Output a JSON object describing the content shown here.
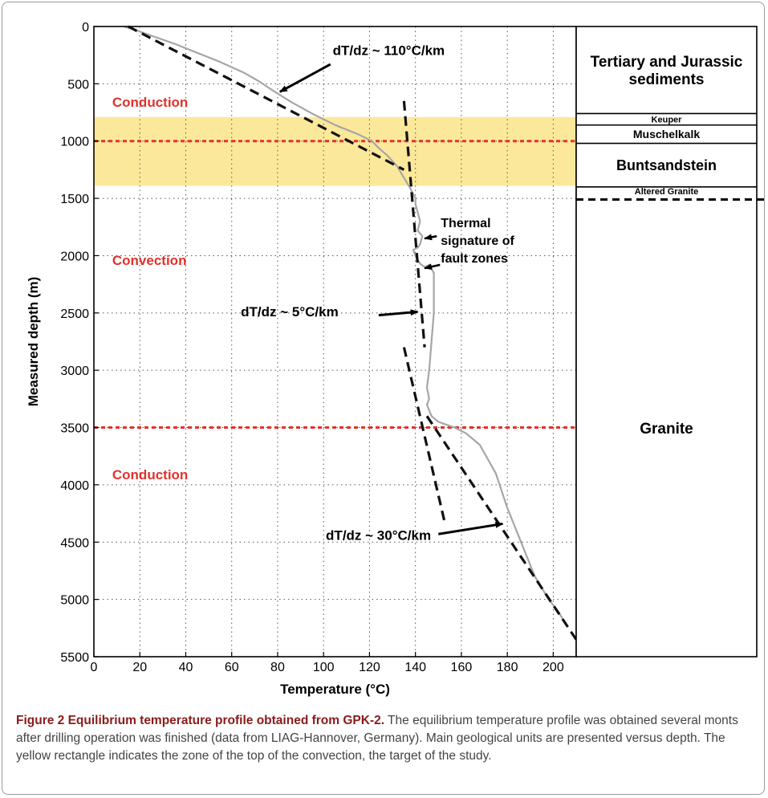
{
  "chart_data": {
    "type": "line",
    "title": "",
    "xlabel": "Temperature (°C)",
    "ylabel": "Measured depth (m)",
    "xlim": [
      0,
      210
    ],
    "ylim": [
      5500,
      0
    ],
    "y_inverted": true,
    "xticks": [
      0,
      20,
      40,
      60,
      80,
      100,
      120,
      140,
      160,
      180,
      200
    ],
    "yticks": [
      0,
      500,
      1000,
      1500,
      2000,
      2500,
      3000,
      3500,
      4000,
      4500,
      5000,
      5500
    ],
    "grid": true,
    "series": [
      {
        "kind": "measured",
        "color": "#a6a6a6",
        "x": [
          13,
          18,
          25,
          35,
          45,
          55,
          65,
          72,
          78,
          86,
          95,
          105,
          115,
          121,
          124,
          128,
          132,
          135,
          138,
          140,
          140,
          141,
          142,
          141,
          143,
          142,
          141,
          139,
          140,
          142,
          144,
          146,
          148,
          148,
          146,
          145,
          146,
          145,
          147,
          150,
          157,
          162,
          168,
          175,
          180,
          186,
          192,
          198,
          202,
          205
        ],
        "y": [
          0,
          30,
          80,
          150,
          230,
          310,
          400,
          480,
          560,
          660,
          760,
          860,
          940,
          1000,
          1060,
          1130,
          1220,
          1320,
          1420,
          1500,
          1550,
          1620,
          1700,
          1780,
          1830,
          1900,
          1930,
          1950,
          2000,
          2070,
          2100,
          2080,
          2150,
          2500,
          3000,
          3150,
          3250,
          3300,
          3400,
          3450,
          3500,
          3550,
          3650,
          3900,
          4200,
          4500,
          4800,
          5000,
          5100,
          5200
        ]
      },
      {
        "kind": "fit",
        "color": "#111111",
        "x": [
          15,
          135
        ],
        "y": [
          0,
          1250
        ]
      },
      {
        "kind": "fit",
        "color": "#111111",
        "x": [
          135,
          144
        ],
        "y": [
          650,
          2800
        ]
      },
      {
        "kind": "fit",
        "color": "#111111",
        "x": [
          135,
          153
        ],
        "y": [
          2800,
          4350
        ]
      },
      {
        "kind": "fit",
        "color": "#111111",
        "x": [
          145,
          210
        ],
        "y": [
          3400,
          5350
        ]
      }
    ],
    "reference_lines": [
      {
        "axis": "y",
        "value": 1000,
        "color": "#e8302a"
      },
      {
        "axis": "y",
        "value": 3500,
        "color": "#e8302a"
      }
    ],
    "highlight_band": {
      "y_from": 790,
      "y_to": 1390,
      "color": "#fbe89a"
    },
    "zone_labels": [
      {
        "text": "Conduction",
        "x": 8,
        "y": 700
      },
      {
        "text": "Convection",
        "x": 8,
        "y": 2080
      },
      {
        "text": "Conduction",
        "x": 8,
        "y": 3950
      }
    ],
    "annotations": [
      {
        "text": "dT/dz ~ 110°C/km",
        "x": 104,
        "y": 250,
        "arrow_to": [
          81,
          570
        ]
      },
      {
        "text": "dT/dz ~ 5°C/km",
        "x": 64,
        "y": 2530,
        "arrow_to": [
          141,
          2490
        ]
      },
      {
        "text": "dT/dz ~ 30°C/km",
        "x": 101,
        "y": 4480,
        "arrow_to": [
          178,
          4340
        ]
      }
    ],
    "fault_zone_note": {
      "lines": [
        "Thermal",
        "signature of",
        "fault zones"
      ],
      "x": 150,
      "y": 1750,
      "arrow_targets": [
        [
          144,
          1850
        ],
        [
          144,
          2110
        ]
      ]
    },
    "geology_column": [
      {
        "name": "Tertiary and Jurassic sediments",
        "lines": [
          "Tertiary and Jurassic",
          "sediments"
        ],
        "top": 0,
        "bottom": 760
      },
      {
        "name": "Keuper",
        "lines": [
          "Keuper"
        ],
        "top": 760,
        "bottom": 860
      },
      {
        "name": "Muschelkalk",
        "lines": [
          "Muschelkalk"
        ],
        "top": 860,
        "bottom": 1020
      },
      {
        "name": "Buntsandstein",
        "lines": [
          "Buntsandstein"
        ],
        "top": 1020,
        "bottom": 1400
      },
      {
        "name": "Altered Granite",
        "lines": [
          "Altered Granite"
        ],
        "top": 1400,
        "bottom": 1510
      },
      {
        "name": "Granite",
        "lines": [
          "Granite"
        ],
        "top": 1510,
        "bottom": 5500
      }
    ]
  },
  "caption": {
    "lead": "Figure 2 Equilibrium temperature profile obtained from GPK-2.",
    "text": " The equilibrium temperature profile was obtained several monts after drilling operation was finished (data from LIAG-Hannover, Germany). Main geological units are presented versus depth. The yellow rectangle indicates the zone of the top of the convection, the target of the study."
  }
}
